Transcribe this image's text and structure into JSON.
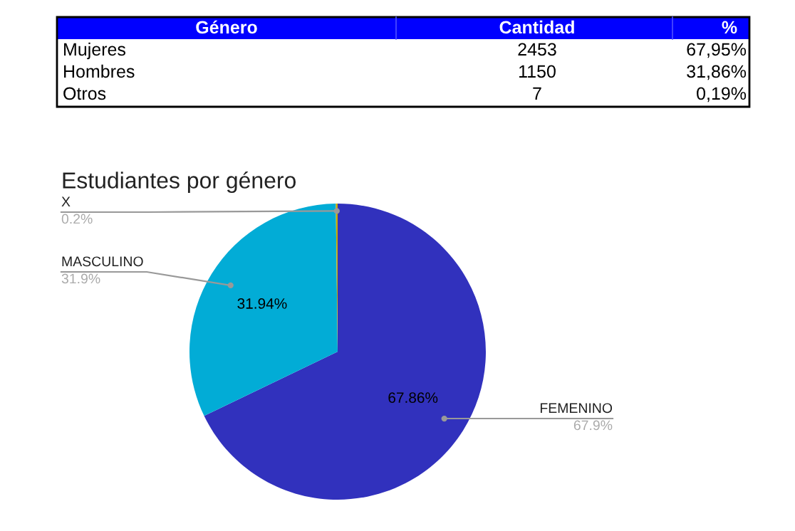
{
  "chart_data": {
    "type": "pie",
    "title": "Estudiantes por género",
    "categories": [
      "FEMENINO",
      "MASCULINO",
      "X"
    ],
    "values": [
      67.86,
      31.94,
      0.2
    ],
    "colors": [
      "#3131bd",
      "#02acd6",
      "#c9a800"
    ],
    "value_labels": [
      "67.86%",
      "31.94%",
      null
    ],
    "annotations": [
      {
        "text": "67.9%",
        "x": "FEMENINO"
      },
      {
        "text": "31.9%",
        "x": "MASCULINO"
      },
      {
        "text": "0.2%",
        "x": "X"
      },
      "Género",
      "Cantidad",
      "%",
      "Mujeres",
      "2453",
      "67,95%",
      "Hombres",
      "1150",
      "31,86%",
      "Otros",
      "7",
      "0,19%"
    ]
  }
}
